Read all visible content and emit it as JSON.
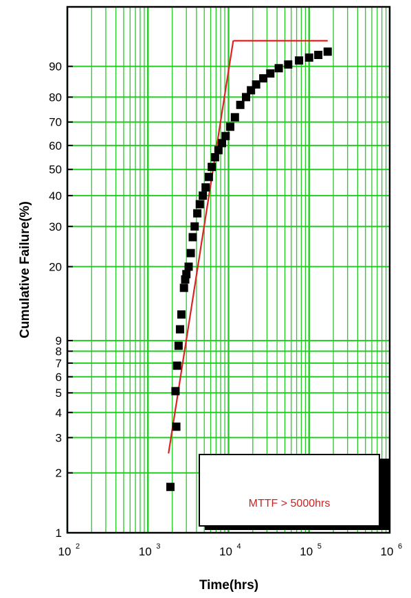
{
  "chart_data": {
    "type": "scatter",
    "title": "",
    "xlabel": "Time(hrs)",
    "ylabel": "Cumulative Failure(%)",
    "x_scale": "log",
    "y_scale": "weibull",
    "xlim": [
      100,
      1000000
    ],
    "ylim": [
      1,
      99
    ],
    "grid": true,
    "grid_color": "#22cc22",
    "x_ticks": [
      {
        "base": "10",
        "exp": "2",
        "value": 100
      },
      {
        "base": "10",
        "exp": "3",
        "value": 1000
      },
      {
        "base": "10",
        "exp": "4",
        "value": 10000
      },
      {
        "base": "10",
        "exp": "5",
        "value": 100000
      },
      {
        "base": "10",
        "exp": "6",
        "value": 1000000
      }
    ],
    "y_ticks": [
      {
        "label": "1",
        "value": 1
      },
      {
        "label": "2",
        "value": 2
      },
      {
        "label": "3",
        "value": 3
      },
      {
        "label": "4",
        "value": 4
      },
      {
        "label": "5",
        "value": 5
      },
      {
        "label": "6",
        "value": 6
      },
      {
        "label": "7",
        "value": 7
      },
      {
        "label": "8",
        "value": 8
      },
      {
        "label": "9",
        "value": 9
      },
      {
        "label": "20",
        "value": 20
      },
      {
        "label": "30",
        "value": 30
      },
      {
        "label": "40",
        "value": 40
      },
      {
        "label": "50",
        "value": 50
      },
      {
        "label": "60",
        "value": 60
      },
      {
        "label": "70",
        "value": 70
      },
      {
        "label": "80",
        "value": 80
      },
      {
        "label": "90",
        "value": 90
      }
    ],
    "series": [
      {
        "type": "scatter",
        "color": "#000000",
        "points": [
          [
            1900,
            1.7
          ],
          [
            2250,
            3.4
          ],
          [
            2200,
            5.1
          ],
          [
            2300,
            6.8
          ],
          [
            2400,
            8.5
          ],
          [
            2500,
            10.2
          ],
          [
            2600,
            12.0
          ],
          [
            2800,
            16.0
          ],
          [
            2900,
            17.5
          ],
          [
            3000,
            18.5
          ],
          [
            3200,
            20.0
          ],
          [
            3400,
            23.0
          ],
          [
            3600,
            27.0
          ],
          [
            3800,
            30.0
          ],
          [
            4100,
            34.0
          ],
          [
            4400,
            37.0
          ],
          [
            4800,
            40.0
          ],
          [
            5200,
            43.0
          ],
          [
            5700,
            47.0
          ],
          [
            6200,
            51.0
          ],
          [
            6800,
            55.0
          ],
          [
            7500,
            58.0
          ],
          [
            8300,
            61.0
          ],
          [
            9200,
            64.0
          ],
          [
            10500,
            68.0
          ],
          [
            12000,
            72.0
          ],
          [
            14000,
            77.0
          ],
          [
            16500,
            80.0
          ],
          [
            19000,
            82.5
          ],
          [
            22000,
            84.5
          ],
          [
            27000,
            86.5
          ],
          [
            33000,
            88.0
          ],
          [
            42000,
            89.5
          ],
          [
            55000,
            90.5
          ],
          [
            75000,
            91.5
          ],
          [
            100000,
            92.2
          ],
          [
            130000,
            92.8
          ],
          [
            170000,
            93.5
          ]
        ]
      },
      {
        "type": "line",
        "color": "#dd2222",
        "fit": "weibull",
        "x_range": [
          1800,
          170000
        ],
        "weibull_shape": 2.6,
        "weibull_scale": 7400
      }
    ],
    "annotations": [
      {
        "text": "MTTF > 5000hrs",
        "box": true
      }
    ]
  }
}
